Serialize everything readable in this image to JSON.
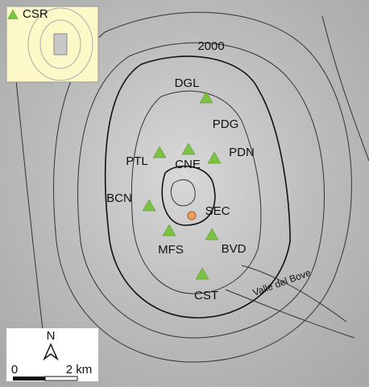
{
  "inset": {
    "label": "CSR"
  },
  "contour_label": "2000",
  "stations": [
    "DGL",
    "PDG",
    "PTL",
    "CNE",
    "PDN",
    "BCN",
    "MFS",
    "BVD",
    "CST"
  ],
  "vent": {
    "label": "SEC"
  },
  "valley_label": "Valle del Bove",
  "scale_bar": {
    "north": "N",
    "start": "0",
    "end": "2 km"
  }
}
